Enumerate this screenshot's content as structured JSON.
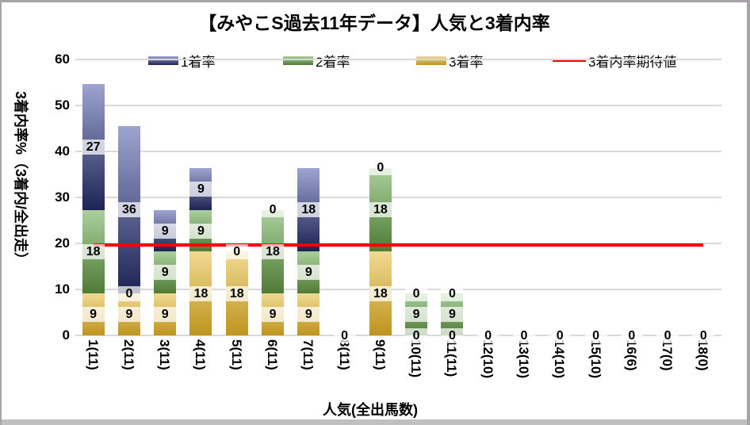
{
  "title": "【みやこS過去11年データ】人気と3着内率",
  "legend": [
    {
      "label": "1着率",
      "type": "gradient-swatch",
      "color_top": "#9ea4d0",
      "color_bottom": "#1d2453"
    },
    {
      "label": "2着率",
      "type": "gradient-swatch",
      "color_top": "#aacf9d",
      "color_bottom": "#4f7b36"
    },
    {
      "label": "3着率",
      "type": "gradient-swatch",
      "color_top": "#f0da93",
      "color_bottom": "#be941e"
    },
    {
      "label": "3着内率期待値",
      "type": "line-swatch",
      "color": "#ff0000"
    }
  ],
  "chart_data": {
    "type": "bar",
    "stacked": true,
    "title": "【みやこS過去11年データ】人気と3着内率",
    "xlabel": "人気(全出馬数)",
    "ylabel": "3着内率%（3着内/全出走）",
    "ylim": [
      0,
      60
    ],
    "yticks": [
      0,
      10,
      20,
      30,
      40,
      50,
      60
    ],
    "grid": true,
    "legend_position": "top",
    "categories": [
      "1(11)",
      "2(11)",
      "3(11)",
      "4(11)",
      "5(11)",
      "6(11)",
      "7(11)",
      "8(11)",
      "9(11)",
      "10(11)",
      "11(11)",
      "12(10)",
      "13(10)",
      "14(10)",
      "15(10)",
      "16(6)",
      "17(0)",
      "18(0)"
    ],
    "series": [
      {
        "name": "1着率",
        "stack_position": "top",
        "color_top": "#9ea4d0",
        "color_bottom": "#1d2453",
        "values": [
          27.3,
          36.4,
          9.1,
          9.1,
          0,
          0,
          18.2,
          0,
          0,
          0,
          0,
          0,
          0,
          0,
          0,
          0,
          0,
          0
        ]
      },
      {
        "name": "2着率",
        "stack_position": "middle",
        "color_top": "#aacf9d",
        "color_bottom": "#4f7b36",
        "values": [
          18.2,
          0,
          9.1,
          9.1,
          0,
          18.2,
          9.1,
          0,
          18.2,
          9.1,
          9.1,
          0,
          0,
          0,
          0,
          0,
          0,
          0
        ]
      },
      {
        "name": "3着率",
        "stack_position": "bottom",
        "color_top": "#f0da93",
        "color_bottom": "#be941e",
        "values": [
          9.1,
          9.1,
          9.1,
          18.2,
          18.2,
          9.1,
          9.1,
          0,
          18.2,
          0,
          0,
          0,
          0,
          0,
          0,
          0,
          0,
          0
        ]
      }
    ],
    "line_series": {
      "name": "3着内率期待値",
      "value": 19.6,
      "color": "#ff0000"
    },
    "data_label_values_shown": {
      "1(11)": [
        9,
        18,
        27
      ],
      "2(11)": [
        9,
        0,
        36
      ],
      "3(11)": [
        9,
        9,
        9
      ],
      "4(11)": [
        18,
        9,
        9
      ],
      "5(11)": [
        18,
        0
      ],
      "6(11)": [
        9,
        18,
        0
      ],
      "7(11)": [
        9,
        9,
        18
      ],
      "8(11)": [
        0
      ],
      "9(11)": [
        18,
        18,
        0
      ],
      "10(11)": [
        0,
        9,
        0
      ],
      "11(11)": [
        0,
        9,
        0
      ],
      "12(10)": [
        0
      ],
      "13(10)": [
        0
      ],
      "14(10)": [
        0
      ],
      "15(10)": [
        0
      ],
      "16(6)": [
        0
      ],
      "17(0)": [
        0
      ],
      "18(0)": [
        0
      ]
    }
  },
  "colors": {
    "gridline": "#d9d9d9",
    "expected_line": "#ff0000",
    "label_background": "rgba(255,255,255,0.72)",
    "frame_border": "#a8a3a8",
    "bottom_strip": "#c1c0c1",
    "text": "#000000"
  }
}
